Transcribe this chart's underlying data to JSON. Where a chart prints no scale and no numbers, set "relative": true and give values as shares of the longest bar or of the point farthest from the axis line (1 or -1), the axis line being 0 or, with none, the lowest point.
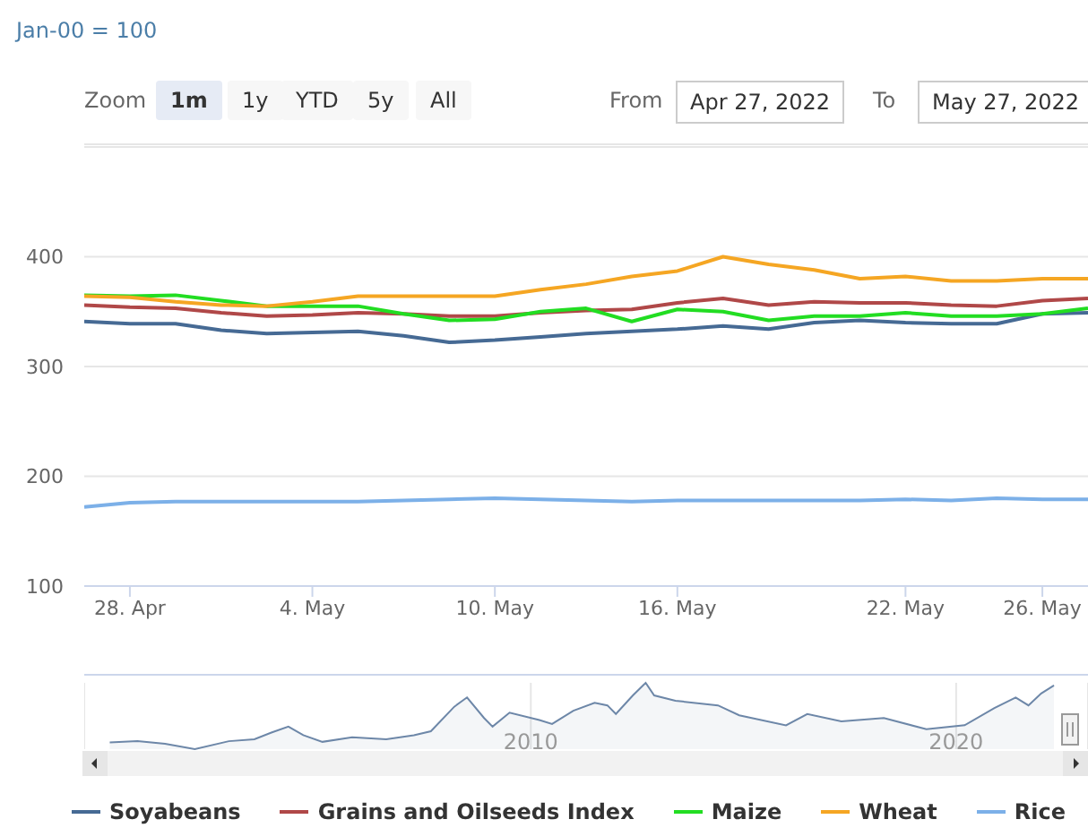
{
  "chart_data": [
    {
      "type": "line",
      "ylabel": "Jan-00 = 100",
      "annotations": [
        "Zoom",
        "1m",
        "1y",
        "YTD",
        "5y",
        "All",
        "From",
        "Apr 27, 2022",
        "To",
        "May 27, 2022"
      ],
      "categories": [
        null,
        "28. Apr",
        null,
        null,
        null,
        "4. May",
        null,
        null,
        null,
        "10. May",
        null,
        null,
        null,
        "16. May",
        null,
        null,
        null,
        null,
        "22. May",
        null,
        null,
        "26. May",
        null
      ],
      "series": [
        {
          "name": "Soyabeans",
          "color": "#466a94",
          "values": [
            341,
            339,
            339,
            333,
            330,
            331,
            332,
            328,
            322,
            324,
            327,
            330,
            332,
            334,
            337,
            334,
            340,
            342,
            340,
            339,
            339,
            348,
            349
          ]
        },
        {
          "name": "Grains and Oilseeds Index",
          "color": "#b04848",
          "values": [
            356,
            354,
            353,
            349,
            346,
            347,
            349,
            348,
            346,
            346,
            349,
            351,
            352,
            358,
            362,
            356,
            359,
            358,
            358,
            356,
            355,
            360,
            362
          ]
        },
        {
          "name": "Maize",
          "color": "#22dd22",
          "values": [
            365,
            364,
            365,
            360,
            355,
            355,
            355,
            348,
            342,
            343,
            350,
            353,
            341,
            352,
            350,
            342,
            346,
            346,
            349,
            346,
            346,
            348,
            353
          ]
        },
        {
          "name": "Wheat",
          "color": "#f5a623",
          "values": [
            364,
            363,
            359,
            356,
            355,
            359,
            364,
            364,
            364,
            364,
            370,
            375,
            382,
            387,
            400,
            393,
            388,
            380,
            382,
            378,
            378,
            380,
            380
          ]
        },
        {
          "name": "Rice",
          "color": "#7cb0e8",
          "values": [
            172,
            176,
            177,
            177,
            177,
            177,
            177,
            178,
            179,
            180,
            179,
            178,
            177,
            178,
            178,
            178,
            178,
            178,
            179,
            178,
            180,
            179,
            179
          ]
        }
      ],
      "ylim": [
        100,
        500
      ],
      "yticks": [
        100,
        200,
        300,
        400
      ],
      "grid": "y",
      "legend": "bottom",
      "marker": "none",
      "line_style": "solid"
    },
    {
      "type": "area",
      "relative": true,
      "color": "#6d87a8",
      "x": [
        2000.1,
        2000.75,
        2001.4,
        2002.1,
        2002.9,
        2003.5,
        2003.9,
        2004.3,
        2004.65,
        2005.1,
        2005.8,
        2006.6,
        2007.25,
        2007.65,
        2008.2,
        2008.5,
        2008.9,
        2009.1,
        2009.5,
        2010.2,
        2010.5,
        2011.0,
        2011.5,
        2011.8,
        2012.0,
        2012.4,
        2012.7,
        2012.9,
        2013.4,
        2014.4,
        2014.9,
        2016.0,
        2016.5,
        2017.3,
        2018.3,
        2019.3,
        2020.2,
        2020.9,
        2021.4,
        2021.7,
        2022.0,
        2022.3
      ],
      "values": [
        0.1,
        0.12,
        0.08,
        0,
        0.12,
        0.15,
        0.25,
        0.34,
        0.21,
        0.11,
        0.18,
        0.15,
        0.21,
        0.27,
        0.64,
        0.78,
        0.47,
        0.34,
        0.55,
        0.44,
        0.38,
        0.58,
        0.7,
        0.66,
        0.53,
        0.81,
        1,
        0.81,
        0.73,
        0.66,
        0.51,
        0.36,
        0.53,
        0.42,
        0.47,
        0.3,
        0.36,
        0.62,
        0.78,
        0.66,
        0.84,
        0.96
      ],
      "xlim": [
        1999.5,
        2023.1
      ],
      "xticks": [
        2010,
        2020
      ],
      "grid": "x"
    }
  ]
}
